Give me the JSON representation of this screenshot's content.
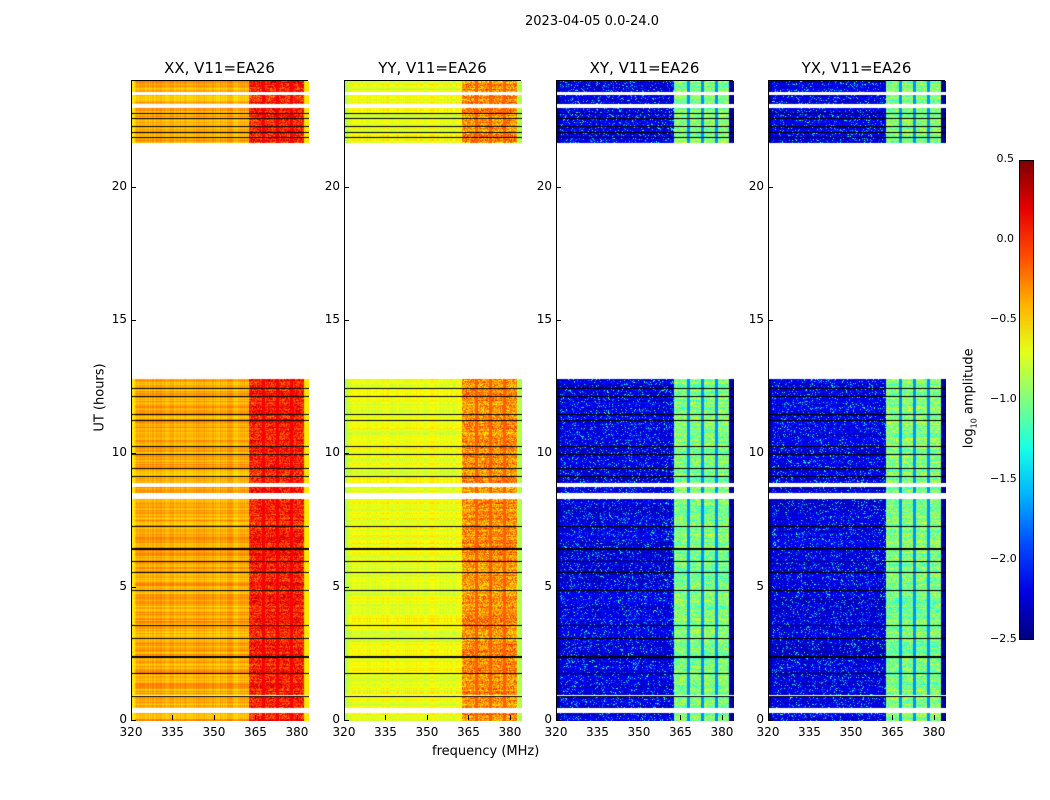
{
  "suptitle": "2023-04-05 0.0-24.0",
  "chart_data": {
    "type": "heatmap",
    "title": "2023-04-05 0.0-24.0",
    "xlabel": "frequency (MHz)",
    "ylabel": "UT (hours)",
    "xlim": [
      320,
      384
    ],
    "ylim": [
      0,
      24
    ],
    "xticks": [
      "320",
      "335",
      "350",
      "365",
      "380"
    ],
    "yticks": [
      "0",
      "5",
      "10",
      "15",
      "20"
    ],
    "panels": [
      {
        "title": "XX, V11=EA26",
        "base": -0.45,
        "band": 0.05
      },
      {
        "title": "YY, V11=EA26",
        "base": -0.75,
        "band": -0.3
      },
      {
        "title": "XY, V11=EA26",
        "base": -2.3,
        "band": -1.0
      },
      {
        "title": "YX, V11=EA26",
        "base": -2.3,
        "band": -1.0
      }
    ],
    "rfi_band_mhz": [
      362,
      382
    ],
    "data_gaps_hours": [
      [
        0.3,
        0.5
      ],
      [
        0.95,
        1.0
      ],
      [
        8.35,
        8.55
      ],
      [
        8.8,
        8.95
      ],
      [
        12.85,
        21.7
      ],
      [
        23.0,
        23.15
      ],
      [
        23.5,
        23.6
      ]
    ],
    "flag_lines_hours": [
      0.95,
      1.8,
      2.45,
      3.1,
      3.6,
      4.9,
      5.6,
      6.0,
      6.5,
      7.3,
      9.2,
      9.5,
      10.0,
      10.3,
      11.3,
      11.5,
      12.2,
      12.5,
      21.9,
      22.1,
      22.3,
      22.6,
      22.8
    ],
    "colorbar": {
      "label": "log10 amplitude",
      "label_main": "log",
      "label_sub": "10",
      "label_rest": " amplitude",
      "range": [
        -2.5,
        0.5
      ],
      "ticks": [
        "0.5",
        "0.0",
        "−0.5",
        "−1.0",
        "−1.5",
        "−2.0",
        "−2.5"
      ],
      "colormap": "jet"
    }
  }
}
